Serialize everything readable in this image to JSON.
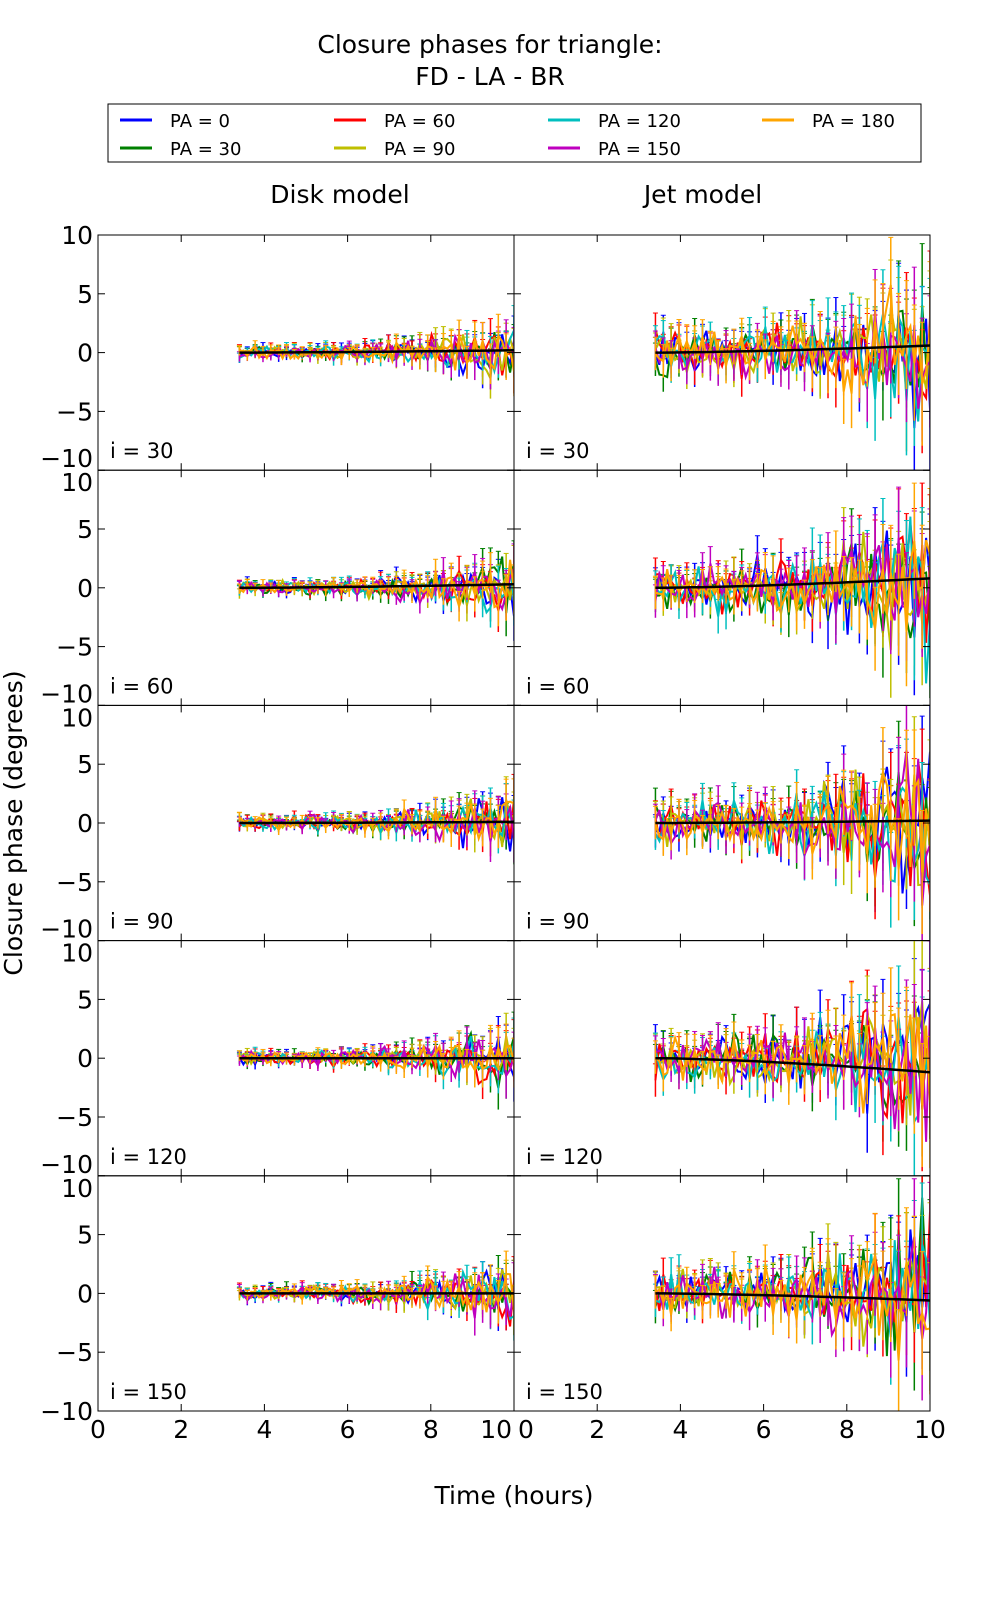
{
  "chart_data": {
    "type": "line",
    "title_line1": "Closure phases for triangle:",
    "title_line2": "FD - LA - BR",
    "xlabel": "Time (hours)",
    "ylabel": "Closure phase (degrees)",
    "xlim": [
      0,
      10
    ],
    "ylim": [
      -10,
      10
    ],
    "x_ticks": [
      "0",
      "2",
      "4",
      "6",
      "8",
      "10"
    ],
    "y_ticks": [
      "10",
      "5",
      "0",
      "−5",
      "−10"
    ],
    "column_titles": [
      "Disk model",
      "Jet model"
    ],
    "row_labels": [
      "i = 30",
      "i = 60",
      "i = 90",
      "i = 120",
      "i = 150"
    ],
    "legend": {
      "placement": "top",
      "entries": [
        {
          "label": "PA = 0",
          "color": "#0000ff"
        },
        {
          "label": "PA = 30",
          "color": "#008000"
        },
        {
          "label": "PA = 60",
          "color": "#ff0000"
        },
        {
          "label": "PA = 90",
          "color": "#bfbf00"
        },
        {
          "label": "PA = 120",
          "color": "#00bfbf"
        },
        {
          "label": "PA = 150",
          "color": "#bf00bf"
        },
        {
          "label": "PA = 180",
          "color": "#ffa500"
        }
      ]
    },
    "time_range_hours": [
      3.4,
      10.0
    ],
    "noise_amplitude_deg": {
      "disk": {
        "start": 0.6,
        "end": 3.0
      },
      "jet": {
        "start": 2.0,
        "end": 8.0
      }
    },
    "model_curves": {
      "disk": [
        [
          0,
          0.2
        ],
        [
          0,
          0.3
        ],
        [
          0,
          0.1
        ],
        [
          0,
          0.0
        ],
        [
          0,
          0.0
        ]
      ],
      "jet": [
        [
          0,
          0.6
        ],
        [
          0,
          0.8
        ],
        [
          0,
          0.2
        ],
        [
          0,
          -1.2
        ],
        [
          0,
          -0.6
        ]
      ]
    }
  }
}
